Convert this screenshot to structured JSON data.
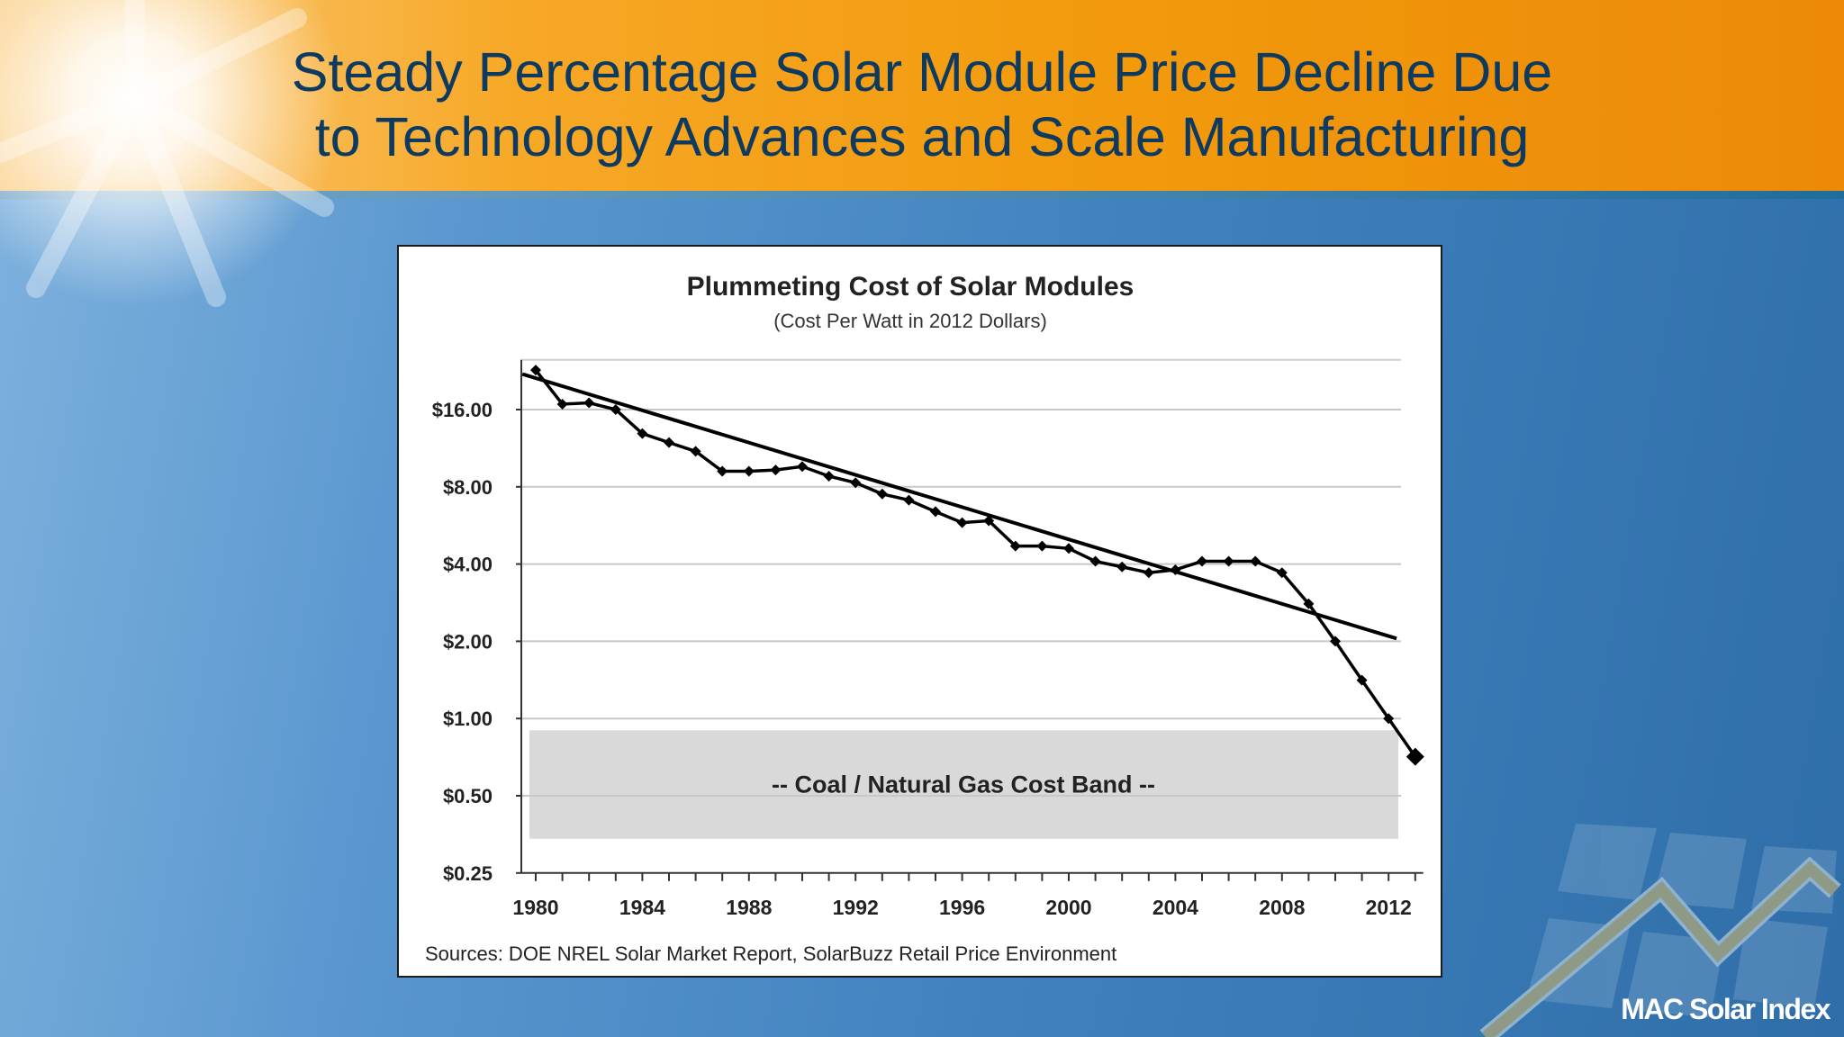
{
  "slide": {
    "title_lines": [
      "Steady Percentage Solar Module Price Decline Due",
      "to Technology Advances and Scale Manufacturing"
    ],
    "logo_text": "MAC Solar Index",
    "colors": {
      "header_orange": "#f29a0c",
      "title_navy": "#0e3a60",
      "background_blue": "#3f80bd",
      "band_gray": "#d9d9d9"
    }
  },
  "chart_data": {
    "type": "line",
    "title": "Plummeting Cost of Solar Modules",
    "subtitle": "(Cost Per Watt in 2012 Dollars)",
    "source": "Sources:  DOE NREL Solar Market Report, SolarBuzz Retail Price Environment",
    "y_scale": "log2",
    "ylim": [
      0.25,
      25
    ],
    "xlim": [
      1979.2,
      2013.5
    ],
    "y_ticks": [
      {
        "value": 16,
        "label": "$16.00"
      },
      {
        "value": 8,
        "label": "$8.00"
      },
      {
        "value": 4,
        "label": "$4.00"
      },
      {
        "value": 2,
        "label": "$2.00"
      },
      {
        "value": 1,
        "label": "$1.00"
      },
      {
        "value": 0.5,
        "label": "$0.50"
      },
      {
        "value": 0.25,
        "label": "$0.25"
      }
    ],
    "x_ticks": [
      "1980",
      "1984",
      "1988",
      "1992",
      "1996",
      "2000",
      "2004",
      "2008",
      "2012"
    ],
    "grid": true,
    "series": [
      {
        "x": [
          1980,
          1981,
          1982,
          1983,
          1984,
          1985,
          1986,
          1987,
          1988,
          1989,
          1990,
          1991,
          1992,
          1993,
          1994,
          1995,
          1996,
          1997,
          1998,
          1999,
          2000,
          2001,
          2002,
          2003,
          2004,
          2005,
          2006,
          2007,
          2008,
          2009,
          2010,
          2011,
          2012,
          2013
        ],
        "values": [
          22.8,
          16.8,
          17.0,
          16.0,
          12.9,
          11.9,
          11.0,
          9.2,
          9.2,
          9.3,
          9.6,
          8.8,
          8.3,
          7.5,
          7.1,
          6.4,
          5.8,
          5.9,
          4.7,
          4.7,
          4.6,
          4.1,
          3.9,
          3.7,
          3.8,
          4.1,
          4.1,
          4.1,
          3.7,
          2.8,
          2.0,
          1.41,
          1.0,
          0.71
        ],
        "color": "#000000"
      }
    ],
    "trendline": {
      "x": [
        1979.5,
        2012.3
      ],
      "values": [
        22.0,
        2.05
      ],
      "color": "#000000"
    },
    "band": {
      "label": "--   Coal / Natural Gas Cost Band   --",
      "range": [
        0.34,
        0.9
      ],
      "color": "#d9d9d9"
    }
  }
}
